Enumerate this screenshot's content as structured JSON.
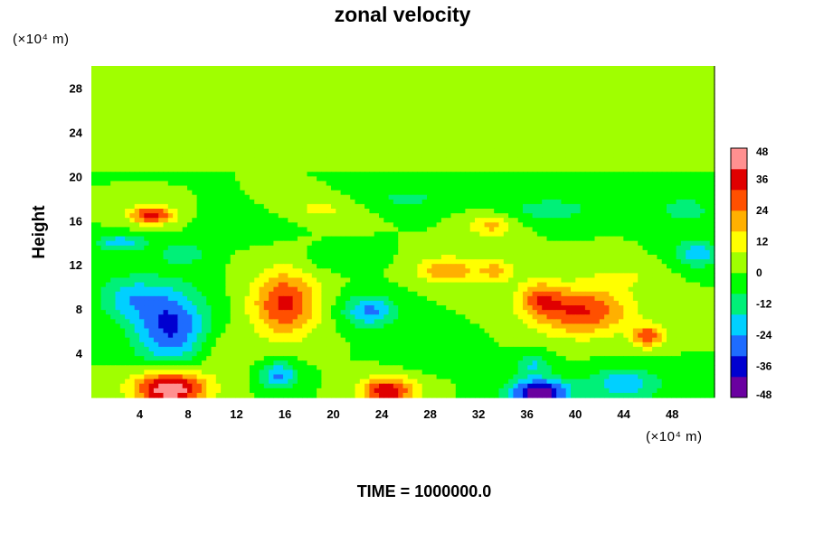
{
  "chart_data": {
    "type": "heatmap",
    "title": "zonal velocity",
    "ylabel": "Height",
    "xlabel": "",
    "x_unit": "(×10⁴ m)",
    "y_unit": "(×10⁴ m)",
    "xlim": [
      0,
      51.5
    ],
    "ylim": [
      0,
      30
    ],
    "x_ticks": [
      4,
      8,
      12,
      16,
      20,
      24,
      28,
      32,
      36,
      40,
      44,
      48
    ],
    "y_ticks": [
      4,
      8,
      12,
      16,
      20,
      24,
      28
    ],
    "footer": "TIME = 1000000.0",
    "colorbar": {
      "range": [
        -48,
        48
      ],
      "ticks": [
        48,
        36,
        24,
        12,
        0,
        -12,
        -24,
        -36,
        -48
      ],
      "colors": [
        "#6a00a0",
        "#0000d0",
        "#1e6cff",
        "#00d0ff",
        "#00f078",
        "#00ff00",
        "#a0ff00",
        "#ffff00",
        "#ffb000",
        "#ff5000",
        "#e00000",
        "#ff9090"
      ]
    },
    "background_value": 0,
    "features": [
      {
        "x": 6.5,
        "y": 6.5,
        "sx": 3.0,
        "sy": 3.5,
        "value": -34
      },
      {
        "x": 3.0,
        "y": 9.0,
        "sx": 2.5,
        "sy": 2.0,
        "value": -18
      },
      {
        "x": 16.0,
        "y": 8.5,
        "sx": 2.7,
        "sy": 3.0,
        "value": 34
      },
      {
        "x": 40.5,
        "y": 7.8,
        "sx": 4.0,
        "sy": 2.2,
        "value": 33
      },
      {
        "x": 46.0,
        "y": 5.5,
        "sx": 1.3,
        "sy": 1.0,
        "value": 30
      },
      {
        "x": 37.0,
        "y": 9.0,
        "sx": 1.8,
        "sy": 1.5,
        "value": 22
      },
      {
        "x": 6.5,
        "y": 0.8,
        "sx": 3.0,
        "sy": 1.6,
        "value": 50
      },
      {
        "x": 24.5,
        "y": 0.6,
        "sx": 2.2,
        "sy": 1.2,
        "value": 40
      },
      {
        "x": 37.0,
        "y": 0.4,
        "sx": 2.5,
        "sy": 1.3,
        "value": -46
      },
      {
        "x": 44.0,
        "y": 1.2,
        "sx": 3.0,
        "sy": 1.5,
        "value": -22
      },
      {
        "x": 15.5,
        "y": 2.0,
        "sx": 1.5,
        "sy": 1.2,
        "value": -26
      },
      {
        "x": 23.0,
        "y": 7.8,
        "sx": 2.2,
        "sy": 1.4,
        "value": -26
      },
      {
        "x": 5.0,
        "y": 16.5,
        "sx": 1.8,
        "sy": 0.8,
        "value": 38
      },
      {
        "x": 2.5,
        "y": 14.0,
        "sx": 2.0,
        "sy": 0.7,
        "value": -22
      },
      {
        "x": 7.5,
        "y": 13.0,
        "sx": 2.0,
        "sy": 1.0,
        "value": -14
      },
      {
        "x": 29.5,
        "y": 11.5,
        "sx": 2.5,
        "sy": 1.2,
        "value": 24
      },
      {
        "x": 33.5,
        "y": 11.5,
        "sx": 1.5,
        "sy": 1.0,
        "value": 18
      },
      {
        "x": 33.0,
        "y": 15.5,
        "sx": 1.8,
        "sy": 1.0,
        "value": 18
      },
      {
        "x": 19.0,
        "y": 17.0,
        "sx": 3.0,
        "sy": 1.0,
        "value": 10
      },
      {
        "x": 38.0,
        "y": 17.0,
        "sx": 3.5,
        "sy": 1.0,
        "value": -14
      },
      {
        "x": 50.0,
        "y": 13.0,
        "sx": 1.8,
        "sy": 1.2,
        "value": -22
      },
      {
        "x": 49.0,
        "y": 17.0,
        "sx": 2.5,
        "sy": 1.3,
        "value": -12
      },
      {
        "x": 36.5,
        "y": 3.0,
        "sx": 1.5,
        "sy": 1.0,
        "value": -16
      },
      {
        "x": 28.0,
        "y": 4.5,
        "sx": 3.0,
        "sy": 1.5,
        "value": -8
      },
      {
        "x": 11.0,
        "y": 4.0,
        "sx": 2.0,
        "sy": 2.0,
        "value": 8
      },
      {
        "x": 13.0,
        "y": 15.5,
        "sx": 3.0,
        "sy": 1.2,
        "value": -8
      },
      {
        "x": 26.0,
        "y": 18.0,
        "sx": 3.5,
        "sy": 1.0,
        "value": -10
      },
      {
        "x": 44.0,
        "y": 11.0,
        "sx": 3.0,
        "sy": 1.2,
        "value": 8
      },
      {
        "x": 20.0,
        "y": 12.5,
        "sx": 3.0,
        "sy": 1.0,
        "value": -6
      }
    ]
  }
}
